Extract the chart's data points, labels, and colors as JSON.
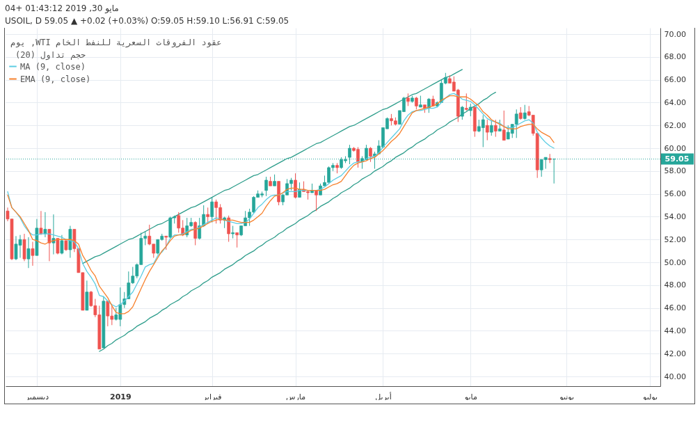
{
  "chart_data": {
    "type": "candlestick",
    "title": "عقود الفروقات السعرية للنفط الخام WTI, يوم",
    "subtitle": "USOIL, D  59.05 ▲ +0.02 (+0.03%)  O:59.05 H:59.10 L:56.91 C:59.05",
    "annotations": [
      "مايو 30, 2019 01:43:12 +04",
      "حجم تداول (20)"
    ],
    "categories": [
      null,
      null,
      null,
      null,
      null,
      null,
      null,
      "ديسمبر",
      null,
      null,
      null,
      null,
      null,
      null,
      null,
      null,
      null,
      null,
      null,
      null,
      null,
      null,
      null,
      null,
      null,
      null,
      null,
      "2019",
      null,
      null,
      null,
      null,
      null,
      null,
      null,
      null,
      null,
      null,
      null,
      null,
      null,
      null,
      null,
      null,
      null,
      null,
      null,
      null,
      null,
      "فبراير",
      null,
      null,
      null,
      null,
      null,
      null,
      null,
      null,
      null,
      null,
      null,
      null,
      null,
      null,
      null,
      null,
      null,
      null,
      null,
      "مارس",
      null,
      null,
      null,
      null,
      null,
      null,
      null,
      null,
      null,
      null,
      null,
      null,
      null,
      null,
      null,
      null,
      null,
      null,
      null,
      null,
      "أبريل",
      null,
      null,
      null,
      null,
      null,
      null,
      null,
      null,
      null,
      null,
      null,
      null,
      null,
      null,
      null,
      null,
      null,
      null,
      null,
      null,
      "مايو",
      null,
      null,
      null,
      null,
      null,
      null,
      null,
      null,
      null,
      null,
      null,
      null,
      null,
      null,
      null,
      null,
      null,
      null,
      null,
      null,
      null,
      null,
      "يونيو",
      null,
      null,
      null,
      null,
      null,
      null,
      null,
      null,
      null,
      null,
      null,
      null,
      null,
      null,
      null,
      null,
      null,
      null,
      null,
      "يوليو",
      null,
      null
    ],
    "ohlc": [
      [
        54.5,
        54.8,
        53.6,
        53.8
      ],
      [
        53.8,
        53.8,
        50.2,
        50.3
      ],
      [
        50.3,
        52.3,
        50.2,
        51.6
      ],
      [
        51.5,
        52.4,
        50.4,
        52.0
      ],
      [
        52.0,
        52.5,
        50.1,
        50.3
      ],
      [
        50.3,
        52.2,
        49.5,
        51.2
      ],
      [
        51.2,
        51.8,
        49.7,
        50.6
      ],
      [
        50.6,
        53.8,
        50.6,
        53.0
      ],
      [
        53.0,
        54.5,
        52.4,
        52.5
      ],
      [
        52.5,
        54.4,
        52.2,
        52.9
      ],
      [
        52.9,
        52.9,
        50.1,
        51.7
      ],
      [
        51.7,
        54.2,
        50.7,
        52.1
      ],
      [
        52.1,
        52.1,
        50.7,
        50.8
      ],
      [
        50.8,
        52.4,
        50.7,
        51.9
      ],
      [
        51.9,
        51.9,
        51.0,
        51.1
      ],
      [
        51.1,
        53.2,
        50.4,
        52.9
      ],
      [
        52.9,
        52.9,
        50.9,
        51.2
      ],
      [
        51.2,
        51.2,
        49.1,
        49.1
      ],
      [
        49.1,
        49.1,
        45.8,
        45.8
      ],
      [
        45.8,
        48.4,
        45.8,
        47.4
      ],
      [
        47.4,
        47.5,
        46.1,
        46.2
      ],
      [
        46.2,
        46.8,
        45.2,
        45.4
      ],
      [
        45.4,
        46.2,
        42.4,
        42.4
      ],
      [
        42.5,
        47.0,
        42.5,
        46.6
      ],
      [
        46.6,
        46.6,
        44.4,
        45.3
      ],
      [
        45.3,
        46.2,
        44.5,
        45.0
      ],
      [
        45.0,
        46.0,
        44.9,
        45.4
      ],
      [
        45.0,
        47.8,
        44.4,
        46.3
      ],
      [
        46.3,
        47.4,
        46.0,
        46.8
      ],
      [
        46.8,
        49.2,
        46.8,
        48.2
      ],
      [
        48.2,
        49.6,
        48.1,
        48.8
      ],
      [
        48.8,
        49.9,
        48.6,
        49.8
      ],
      [
        49.8,
        52.6,
        49.8,
        52.1
      ],
      [
        52.1,
        52.7,
        51.5,
        52.3
      ],
      [
        52.3,
        53.3,
        51.5,
        51.6
      ],
      [
        51.6,
        51.6,
        50.4,
        50.8
      ],
      [
        50.8,
        52.0,
        50.7,
        52.0
      ],
      [
        52.0,
        52.5,
        51.9,
        52.3
      ],
      [
        52.3,
        52.3,
        51.1,
        52.2
      ],
      [
        52.2,
        54.0,
        52.1,
        53.9
      ],
      [
        53.9,
        54.1,
        53.4,
        54.0
      ],
      [
        54.1,
        54.4,
        52.6,
        53.0
      ],
      [
        53.0,
        53.7,
        52.3,
        52.4
      ],
      [
        52.4,
        53.9,
        52.2,
        53.2
      ],
      [
        53.2,
        53.9,
        53.1,
        53.5
      ],
      [
        53.5,
        53.6,
        51.5,
        52.1
      ],
      [
        52.1,
        53.9,
        52.0,
        53.2
      ],
      [
        53.2,
        55.0,
        53.1,
        54.2
      ],
      [
        54.2,
        54.8,
        53.4,
        54.0
      ],
      [
        54.0,
        55.7,
        53.5,
        55.3
      ],
      [
        55.3,
        55.5,
        53.4,
        54.8
      ],
      [
        54.8,
        55.1,
        53.4,
        53.7
      ],
      [
        53.7,
        54.0,
        53.0,
        53.9
      ],
      [
        53.9,
        54.1,
        51.8,
        52.5
      ],
      [
        52.5,
        53.2,
        52.1,
        52.6
      ],
      [
        52.6,
        52.6,
        51.3,
        52.4
      ],
      [
        52.4,
        53.2,
        52.3,
        53.2
      ],
      [
        53.2,
        54.5,
        53.2,
        53.9
      ],
      [
        53.9,
        54.7,
        53.2,
        54.4
      ],
      [
        54.4,
        55.8,
        54.3,
        55.7
      ],
      [
        55.7,
        56.3,
        55.7,
        56.0
      ],
      [
        55.9,
        56.2,
        55.7,
        56.0
      ],
      [
        56.3,
        57.5,
        55.8,
        57.2
      ],
      [
        57.1,
        57.5,
        56.7,
        56.7
      ],
      [
        56.7,
        57.7,
        56.7,
        57.1
      ],
      [
        57.1,
        57.1,
        55.0,
        55.3
      ],
      [
        55.3,
        56.0,
        55.0,
        55.9
      ],
      [
        55.9,
        57.3,
        55.9,
        56.9
      ],
      [
        56.9,
        57.4,
        56.3,
        57.2
      ],
      [
        57.2,
        57.8,
        55.6,
        55.7
      ],
      [
        55.7,
        57.0,
        55.7,
        56.4
      ],
      [
        56.4,
        57.1,
        56.2,
        56.2
      ],
      [
        56.2,
        56.3,
        55.5,
        56.1
      ],
      [
        56.1,
        56.9,
        56.1,
        56.3
      ],
      [
        56.3,
        56.3,
        54.5,
        55.9
      ],
      [
        55.9,
        56.9,
        55.9,
        56.7
      ],
      [
        56.7,
        57.6,
        56.7,
        57.0
      ],
      [
        57.0,
        58.4,
        57.0,
        58.3
      ],
      [
        58.3,
        58.7,
        58.0,
        58.5
      ],
      [
        58.5,
        58.7,
        57.8,
        58.3
      ],
      [
        58.3,
        59.2,
        58.2,
        59.0
      ],
      [
        58.9,
        59.3,
        58.7,
        59.0
      ],
      [
        59.2,
        60.3,
        58.6,
        60.0
      ],
      [
        60.0,
        60.1,
        59.7,
        59.8
      ],
      [
        59.9,
        60.1,
        58.3,
        58.8
      ],
      [
        58.8,
        59.3,
        58.2,
        59.1
      ],
      [
        59.0,
        60.3,
        59.0,
        60.0
      ],
      [
        60.0,
        60.1,
        58.8,
        59.3
      ],
      [
        59.3,
        59.7,
        58.2,
        59.5
      ],
      [
        59.5,
        60.7,
        59.5,
        60.2
      ],
      [
        60.1,
        61.8,
        60.0,
        61.8
      ],
      [
        61.7,
        62.7,
        61.7,
        62.6
      ],
      [
        62.6,
        63.0,
        62.0,
        62.4
      ],
      [
        62.4,
        62.7,
        62.0,
        62.1
      ],
      [
        62.1,
        63.3,
        62.1,
        63.3
      ],
      [
        63.2,
        64.5,
        63.2,
        64.4
      ],
      [
        64.4,
        64.8,
        63.7,
        64.1
      ],
      [
        64.1,
        64.6,
        64.0,
        64.4
      ],
      [
        64.4,
        64.5,
        63.4,
        63.7
      ],
      [
        63.6,
        64.6,
        63.6,
        63.8
      ],
      [
        63.8,
        63.8,
        63.1,
        63.5
      ],
      [
        63.5,
        64.4,
        63.1,
        64.3
      ],
      [
        64.3,
        64.6,
        63.7,
        63.7
      ],
      [
        63.7,
        64.1,
        63.6,
        64.0
      ],
      [
        64.0,
        66.0,
        64.0,
        65.7
      ],
      [
        65.7,
        66.6,
        65.6,
        66.2
      ],
      [
        66.1,
        66.4,
        65.7,
        65.7
      ],
      [
        65.8,
        66.3,
        65.0,
        65.0
      ],
      [
        65.1,
        65.2,
        62.3,
        62.8
      ],
      [
        62.8,
        63.7,
        62.5,
        63.6
      ],
      [
        63.5,
        64.8,
        63.3,
        63.4
      ],
      [
        63.3,
        63.9,
        62.8,
        63.6
      ],
      [
        63.6,
        63.6,
        61.0,
        61.5
      ],
      [
        61.5,
        62.5,
        61.4,
        61.9
      ],
      [
        61.8,
        62.9,
        60.1,
        62.5
      ],
      [
        62.0,
        62.5,
        60.7,
        61.4
      ],
      [
        61.4,
        62.4,
        61.1,
        62.0
      ],
      [
        62.0,
        62.5,
        61.0,
        61.5
      ],
      [
        61.5,
        62.5,
        61.5,
        61.7
      ],
      [
        61.6,
        63.3,
        60.7,
        60.7
      ],
      [
        60.8,
        62.0,
        60.8,
        61.4
      ],
      [
        61.3,
        62.1,
        60.9,
        62.1
      ],
      [
        62.1,
        63.4,
        60.9,
        63.0
      ],
      [
        63.1,
        63.6,
        62.5,
        62.6
      ],
      [
        62.6,
        63.8,
        62.5,
        63.1
      ],
      [
        63.2,
        63.7,
        62.8,
        62.9
      ],
      [
        62.9,
        62.9,
        61.1,
        61.3
      ],
      [
        61.3,
        61.3,
        57.4,
        58.1
      ],
      [
        58.1,
        59.0,
        57.5,
        59.0
      ],
      [
        59.0,
        59.2,
        58.2,
        59.2
      ],
      [
        59.1,
        59.5,
        58.7,
        59.0
      ],
      [
        59.05,
        59.1,
        56.91,
        59.05
      ],
      null,
      null,
      null,
      null,
      null,
      null,
      null,
      null,
      null,
      null,
      null,
      null,
      null,
      null,
      null,
      null,
      null,
      null,
      null,
      null,
      null,
      null,
      null,
      null,
      null
    ],
    "colors": [
      "#ef5350",
      "#ef5350",
      "#26a69a",
      "#26a69a",
      "#ef5350",
      "#26a69a",
      "#ef5350",
      "#26a69a",
      "#ef5350",
      "#26a69a",
      "#ef5350",
      "#26a69a",
      "#ef5350",
      "#26a69a",
      "#ef5350",
      "#26a69a",
      "#ef5350",
      "#ef5350",
      "#ef5350",
      "#26a69a",
      "#ef5350",
      "#ef5350",
      "#ef5350",
      "#26a69a",
      "#ef5350",
      "#ef5350",
      "#26a69a",
      "#26a69a",
      "#26a69a",
      "#26a69a",
      "#26a69a",
      "#26a69a",
      "#26a69a",
      "#26a69a",
      "#ef5350",
      "#ef5350",
      "#26a69a",
      "#26a69a",
      "#ef5350",
      "#26a69a",
      "#26a69a",
      "#ef5350",
      "#ef5350",
      "#26a69a",
      "#26a69a",
      "#ef5350",
      "#26a69a",
      "#26a69a",
      "#ef5350",
      "#26a69a",
      "#ef5350",
      "#ef5350",
      "#26a69a",
      "#ef5350",
      "#26a69a",
      "#ef5350",
      "#26a69a",
      "#26a69a",
      "#26a69a",
      "#26a69a",
      "#26a69a",
      "#26a69a",
      "#26a69a",
      "#ef5350",
      "#26a69a",
      "#ef5350",
      "#26a69a",
      "#26a69a",
      "#26a69a",
      "#ef5350",
      "#26a69a",
      "#ef5350",
      "#ef5350",
      "#26a69a",
      "#ef5350",
      "#26a69a",
      "#26a69a",
      "#26a69a",
      "#26a69a",
      "#ef5350",
      "#26a69a",
      "#26a69a",
      "#26a69a",
      "#ef5350",
      "#ef5350",
      "#26a69a",
      "#26a69a",
      "#ef5350",
      "#26a69a",
      "#26a69a",
      "#26a69a",
      "#26a69a",
      "#ef5350",
      "#ef5350",
      "#26a69a",
      "#26a69a",
      "#ef5350",
      "#26a69a",
      "#ef5350",
      "#26a69a",
      "#ef5350",
      "#26a69a",
      "#ef5350",
      "#26a69a",
      "#26a69a",
      "#26a69a",
      "#ef5350",
      "#ef5350",
      "#ef5350",
      "#26a69a",
      "#ef5350",
      "#26a69a",
      "#ef5350",
      "#26a69a",
      "#26a69a",
      "#ef5350",
      "#26a69a",
      "#ef5350",
      "#26a69a",
      "#ef5350",
      "#26a69a",
      "#26a69a",
      "#26a69a",
      "#ef5350",
      "#26a69a",
      "#ef5350",
      "#ef5350",
      "#ef5350",
      "#26a69a",
      "#26a69a",
      "#ef5350",
      "#26a69a",
      null,
      null,
      null,
      null,
      null,
      null,
      null,
      null,
      null,
      null,
      null,
      null,
      null,
      null,
      null,
      null,
      null,
      null,
      null,
      null,
      null,
      null,
      null,
      null,
      null
    ],
    "series": [
      {
        "type": "line",
        "color": "#2d9d8b",
        "values": [
          null,
          null,
          null,
          null,
          null,
          null,
          null,
          null,
          null,
          null,
          null,
          null,
          null,
          null,
          null,
          null,
          null,
          null,
          49.9,
          50.1,
          50.3,
          50.5,
          50.6,
          50.8,
          51.0,
          51.2,
          51.4,
          51.6,
          51.8,
          52.0,
          52.1,
          52.3,
          52.5,
          52.7,
          52.9,
          53.1,
          53.3,
          53.4,
          53.6,
          53.8,
          54.0,
          54.2,
          54.4,
          54.6,
          54.8,
          54.9,
          55.1,
          55.3,
          55.5,
          55.7,
          55.9,
          56.1,
          56.3,
          56.4,
          56.6,
          56.8,
          57.0,
          57.2,
          57.4,
          57.6,
          57.7,
          57.9,
          58.1,
          58.3,
          58.5,
          58.7,
          58.9,
          59.1,
          59.2,
          59.4,
          59.6,
          59.8,
          60.0,
          60.2,
          60.4,
          60.5,
          60.7,
          60.9,
          61.1,
          61.3,
          61.5,
          61.7,
          61.9,
          62.0,
          62.2,
          62.4,
          62.6,
          62.8,
          63.0,
          63.2,
          63.4,
          63.5,
          63.7,
          63.9,
          64.1,
          64.3,
          64.5,
          64.7,
          64.8,
          65.0,
          65.2,
          65.4,
          65.6,
          65.8,
          66.0,
          66.2,
          66.3,
          66.5,
          66.7,
          66.9,
          null,
          null,
          null,
          null,
          null,
          null,
          null,
          null,
          null,
          null,
          null,
          null,
          null,
          null,
          null,
          null,
          null,
          null,
          null,
          null,
          null,
          null,
          null,
          null,
          null,
          null,
          null,
          null,
          null,
          null,
          null,
          null,
          null,
          null,
          null,
          null,
          null,
          null,
          null,
          null,
          null,
          null,
          null,
          null,
          null,
          null,
          null
        ]
      },
      {
        "type": "line",
        "color": "#2d9d8b",
        "values": [
          null,
          null,
          null,
          null,
          null,
          null,
          null,
          null,
          null,
          null,
          null,
          null,
          null,
          null,
          null,
          null,
          null,
          null,
          null,
          null,
          null,
          null,
          42.2,
          42.4,
          42.7,
          42.9,
          43.2,
          43.4,
          43.6,
          43.9,
          44.1,
          44.4,
          44.6,
          44.8,
          45.1,
          45.3,
          45.5,
          45.8,
          46.0,
          46.3,
          46.5,
          46.7,
          47.0,
          47.2,
          47.5,
          47.7,
          47.9,
          48.2,
          48.4,
          48.7,
          48.9,
          49.1,
          49.4,
          49.6,
          49.8,
          50.1,
          50.3,
          50.6,
          50.8,
          51.0,
          51.3,
          51.5,
          51.8,
          52.0,
          52.2,
          52.5,
          52.7,
          53.0,
          53.2,
          53.4,
          53.7,
          53.9,
          54.1,
          54.4,
          54.6,
          54.9,
          55.1,
          55.3,
          55.6,
          55.8,
          56.1,
          56.3,
          56.5,
          56.8,
          57.0,
          57.3,
          57.5,
          57.7,
          58.0,
          58.2,
          58.4,
          58.7,
          58.9,
          59.2,
          59.4,
          59.6,
          59.9,
          60.1,
          60.4,
          60.6,
          60.8,
          61.1,
          61.3,
          61.6,
          61.8,
          62.0,
          62.3,
          62.5,
          62.7,
          63.0,
          63.2,
          63.5,
          63.7,
          63.9,
          64.2,
          64.4,
          64.7,
          64.9,
          null,
          null,
          null,
          null,
          null,
          null,
          null,
          null,
          null,
          null,
          null,
          null,
          null,
          null,
          null,
          null,
          null,
          null,
          null,
          null,
          null,
          null,
          null,
          null,
          null,
          null,
          null,
          null,
          null,
          null,
          null,
          null,
          null,
          null,
          null,
          null,
          null,
          null,
          null
        ]
      },
      {
        "name": "MA (9, close)",
        "type": "line",
        "color": "#5ccde3",
        "values": [
          56.2,
          54.8,
          54.4,
          53.9,
          53.2,
          52.7,
          52.4,
          52.4,
          52.5,
          52.5,
          52.5,
          52.4,
          52.3,
          52.2,
          52.0,
          51.9,
          51.8,
          51.2,
          49.9,
          49.2,
          48.7,
          48.1,
          47.1,
          47.0,
          46.6,
          46.3,
          46.1,
          46.3,
          46.6,
          47.0,
          47.4,
          48.1,
          48.8,
          49.6,
          49.8,
          49.9,
          50.6,
          50.9,
          51.4,
          52.1,
          52.4,
          52.4,
          52.5,
          52.7,
          52.9,
          52.9,
          53.1,
          53.3,
          53.5,
          53.7,
          53.9,
          53.8,
          53.7,
          53.6,
          53.5,
          53.4,
          53.4,
          53.5,
          53.8,
          54.3,
          54.8,
          55.1,
          55.5,
          55.8,
          55.9,
          55.9,
          56.1,
          56.2,
          56.2,
          56.2,
          56.3,
          56.3,
          56.3,
          56.3,
          56.3,
          56.4,
          56.6,
          56.9,
          57.2,
          57.4,
          57.6,
          58.0,
          58.4,
          58.7,
          58.8,
          58.8,
          59.1,
          59.2,
          59.3,
          59.6,
          60.1,
          60.5,
          60.9,
          61.3,
          61.7,
          62.4,
          62.9,
          63.2,
          63.3,
          63.3,
          63.4,
          63.5,
          63.5,
          63.6,
          64.0,
          64.4,
          64.7,
          64.8,
          64.6,
          64.3,
          64.2,
          64.1,
          63.8,
          63.4,
          63.0,
          62.6,
          62.4,
          62.3,
          62.2,
          61.9,
          61.8,
          61.8,
          62.0,
          62.2,
          62.4,
          62.5,
          62.2,
          61.4,
          60.9,
          60.5,
          60.2,
          60.0,
          null,
          null,
          null,
          null,
          null,
          null,
          null,
          null,
          null,
          null,
          null,
          null,
          null,
          null,
          null,
          null,
          null,
          null,
          null,
          null,
          null,
          null,
          null,
          null,
          null
        ]
      },
      {
        "name": "EMA (9, close)",
        "type": "line",
        "color": "#f7812d",
        "values": [
          55.9,
          54.8,
          54.4,
          54.0,
          53.4,
          52.8,
          52.0,
          51.9,
          51.7,
          51.6,
          51.8,
          51.9,
          52.0,
          52.0,
          52.0,
          52.0,
          51.9,
          51.6,
          50.6,
          50.0,
          49.3,
          48.8,
          47.9,
          47.4,
          46.9,
          46.2,
          45.6,
          45.5,
          45.5,
          45.7,
          46.1,
          46.9,
          47.7,
          48.5,
          49.2,
          49.8,
          50.4,
          51.0,
          51.4,
          51.9,
          52.3,
          52.4,
          52.4,
          52.6,
          52.8,
          52.9,
          53.0,
          53.2,
          53.4,
          53.6,
          53.7,
          53.8,
          53.7,
          53.7,
          53.7,
          53.6,
          53.5,
          53.5,
          53.5,
          53.7,
          54.0,
          54.3,
          54.9,
          55.4,
          55.8,
          55.9,
          56.1,
          56.4,
          56.5,
          56.5,
          56.4,
          56.4,
          56.3,
          56.3,
          56.3,
          56.3,
          56.4,
          56.6,
          56.8,
          56.9,
          57.1,
          57.6,
          58.1,
          58.5,
          58.7,
          58.8,
          58.9,
          59.1,
          59.2,
          59.5,
          59.8,
          60.2,
          60.6,
          60.9,
          61.3,
          61.9,
          62.5,
          63.1,
          63.3,
          63.4,
          63.5,
          63.6,
          63.7,
          63.9,
          64.2,
          64.4,
          64.6,
          64.6,
          64.5,
          64.5,
          64.5,
          64.3,
          64.0,
          63.7,
          63.2,
          62.9,
          62.5,
          62.3,
          62.1,
          61.9,
          61.7,
          61.7,
          61.7,
          61.9,
          62.0,
          62.1,
          62.1,
          61.7,
          61.4,
          61.2,
          61.0,
          60.5,
          null,
          null,
          null,
          null,
          null,
          null,
          null,
          null,
          null,
          null,
          null,
          null,
          null,
          null,
          null,
          null,
          null,
          null,
          null,
          null,
          null,
          null,
          null,
          null,
          null
        ]
      }
    ],
    "ylim": [
      39.15,
      70.55
    ],
    "yticks": [
      {
        "value": 40,
        "label": "40.00"
      },
      {
        "value": 42,
        "label": "42.00"
      },
      {
        "value": 44,
        "label": "44.00"
      },
      {
        "value": 46,
        "label": "46.00"
      },
      {
        "value": 48,
        "label": "48.00"
      },
      {
        "value": 50,
        "label": "50.00"
      },
      {
        "value": 52,
        "label": "52.00"
      },
      {
        "value": 54,
        "label": "54.00"
      },
      {
        "value": 56,
        "label": "56.00"
      },
      {
        "value": 58,
        "label": "58.00"
      },
      {
        "value": 60,
        "label": "60.00"
      },
      {
        "value": 62,
        "label": "62.00"
      },
      {
        "value": 64,
        "label": "64.00"
      },
      {
        "value": 66,
        "label": "66.00"
      },
      {
        "value": 68,
        "label": "68.00"
      },
      {
        "value": 70,
        "label": "70.00"
      }
    ],
    "ref_lines": [
      {
        "axis": "y",
        "value": 59.05,
        "label": "59.05",
        "color": "#26a69a",
        "line_style": "dotted"
      }
    ],
    "grid": true,
    "legend": "top left"
  }
}
